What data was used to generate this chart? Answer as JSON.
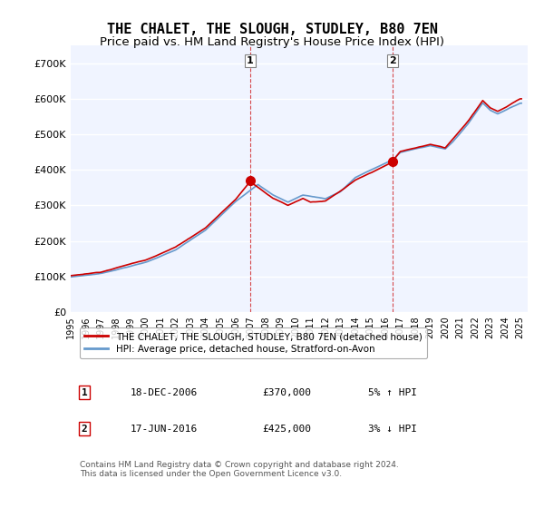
{
  "title": "THE CHALET, THE SLOUGH, STUDLEY, B80 7EN",
  "subtitle": "Price paid vs. HM Land Registry's House Price Index (HPI)",
  "ylabel": "",
  "ylim": [
    0,
    750000
  ],
  "yticks": [
    0,
    100000,
    200000,
    300000,
    400000,
    500000,
    600000,
    700000
  ],
  "ytick_labels": [
    "£0",
    "£100K",
    "£200K",
    "£300K",
    "£400K",
    "£500K",
    "£600K",
    "£700K"
  ],
  "xlim_start": 1995.0,
  "xlim_end": 2025.5,
  "red_line_color": "#cc0000",
  "blue_line_color": "#6699cc",
  "marker1_date": 2006.96,
  "marker1_value": 370000,
  "marker2_date": 2016.46,
  "marker2_value": 425000,
  "vline1_x": 2006.96,
  "vline2_x": 2016.46,
  "legend_red_label": "THE CHALET, THE SLOUGH, STUDLEY, B80 7EN (detached house)",
  "legend_blue_label": "HPI: Average price, detached house, Stratford-on-Avon",
  "annotation1_num": "1",
  "annotation1_date": "18-DEC-2006",
  "annotation1_price": "£370,000",
  "annotation1_hpi": "5% ↑ HPI",
  "annotation2_num": "2",
  "annotation2_date": "17-JUN-2016",
  "annotation2_price": "£425,000",
  "annotation2_hpi": "3% ↓ HPI",
  "footer": "Contains HM Land Registry data © Crown copyright and database right 2024.\nThis data is licensed under the Open Government Licence v3.0.",
  "background_color": "#ffffff",
  "plot_bg_color": "#f0f4ff",
  "grid_color": "#ffffff",
  "title_fontsize": 11,
  "subtitle_fontsize": 9.5
}
